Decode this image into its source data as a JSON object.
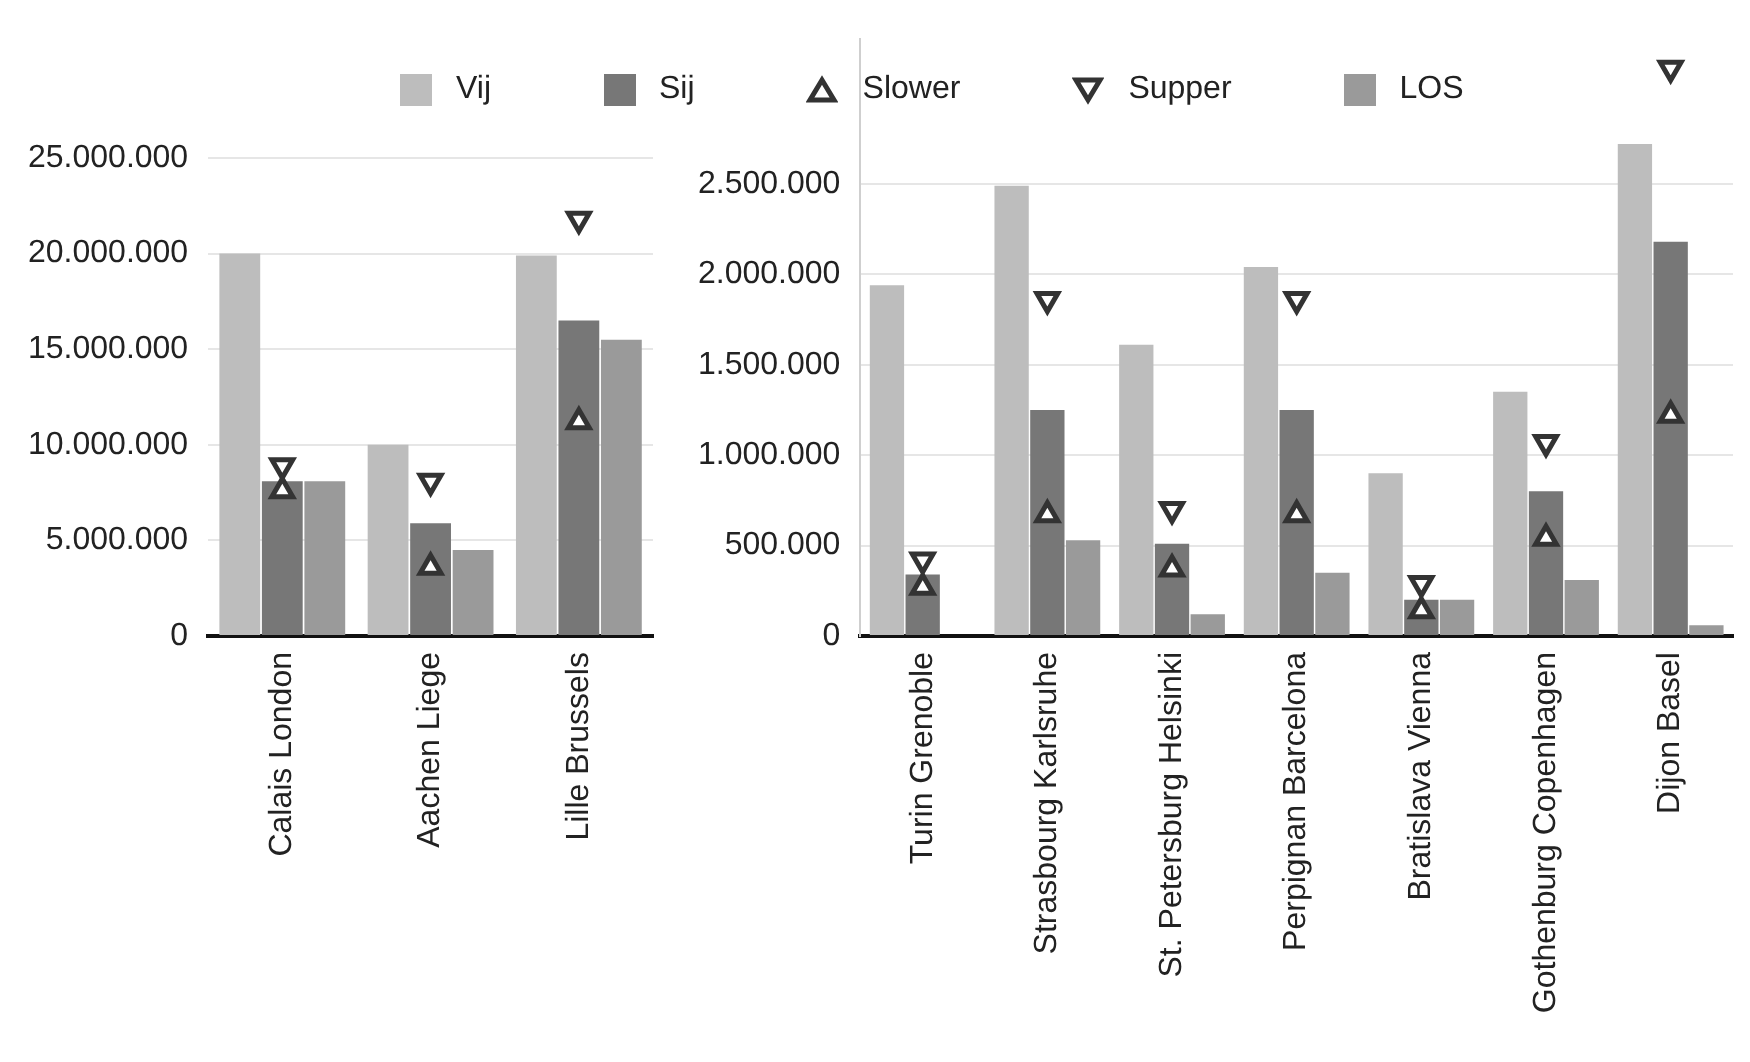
{
  "chart_data": [
    {
      "type": "bar",
      "legend": "top",
      "grid": "y",
      "categories": [
        "Calais London",
        "Aachen Liege",
        "Lille Brussels"
      ],
      "ylim": [
        0,
        25000000
      ],
      "yticks": [
        {
          "value": 0,
          "label": "0"
        },
        {
          "value": 5000000,
          "label": "5.000.000"
        },
        {
          "value": 10000000,
          "label": "10.000.000"
        },
        {
          "value": 15000000,
          "label": "15.000.000"
        },
        {
          "value": 20000000,
          "label": "20.000.000"
        },
        {
          "value": 25000000,
          "label": "25.000.000"
        }
      ],
      "series": [
        {
          "name": "Vij",
          "color": "#bdbdbd",
          "values": [
            20000000,
            10000000,
            19900000
          ]
        },
        {
          "name": "Sij",
          "color": "#777777",
          "values": [
            8100000,
            5900000,
            16500000
          ]
        },
        {
          "name": "Slower",
          "type": "scatter",
          "marker": "triangle",
          "color": "#333333",
          "values": [
            7600000,
            3600000,
            11200000
          ]
        },
        {
          "name": "Supper",
          "type": "scatter",
          "marker": "triangle-down",
          "color": "#333333",
          "values": [
            8900000,
            8100000,
            21800000
          ]
        },
        {
          "name": "LOS",
          "color": "#9a9a9a",
          "values": [
            8100000,
            4500000,
            15500000
          ]
        }
      ]
    },
    {
      "type": "bar",
      "legend": "top",
      "grid": "y",
      "categories": [
        "Turin Grenoble",
        "Strasbourg Karlsruhe",
        "St. Petersburg Helsinki",
        "Perpignan Barcelona",
        "Bratislava Vienna",
        "Gothenburg Copenhagen",
        "Dijon Basel"
      ],
      "ylim": [
        0,
        3300000
      ],
      "yticks": [
        {
          "value": 0,
          "label": "0"
        },
        {
          "value": 500000,
          "label": "500.000"
        },
        {
          "value": 1000000,
          "label": "1.000.000"
        },
        {
          "value": 1500000,
          "label": "1.500.000"
        },
        {
          "value": 2000000,
          "label": "2.000.000"
        },
        {
          "value": 2500000,
          "label": "2.500.000"
        }
      ],
      "series": [
        {
          "name": "Vij",
          "color": "#bdbdbd",
          "values": [
            1940000,
            2490000,
            1610000,
            2040000,
            900000,
            1350000,
            2720000
          ]
        },
        {
          "name": "Sij",
          "color": "#777777",
          "values": [
            340000,
            1250000,
            510000,
            1250000,
            200000,
            800000,
            2180000
          ]
        },
        {
          "name": "Slower",
          "type": "scatter",
          "marker": "triangle",
          "color": "#333333",
          "values": [
            270000,
            670000,
            370000,
            670000,
            140000,
            540000,
            1220000
          ]
        },
        {
          "name": "Supper",
          "type": "scatter",
          "marker": "triangle-down",
          "color": "#333333",
          "values": [
            420000,
            1860000,
            700000,
            1860000,
            290000,
            1070000,
            3140000
          ]
        },
        {
          "name": "LOS",
          "color": "#9a9a9a",
          "values": [
            null,
            530000,
            120000,
            350000,
            200000,
            310000,
            60000
          ]
        }
      ]
    }
  ]
}
